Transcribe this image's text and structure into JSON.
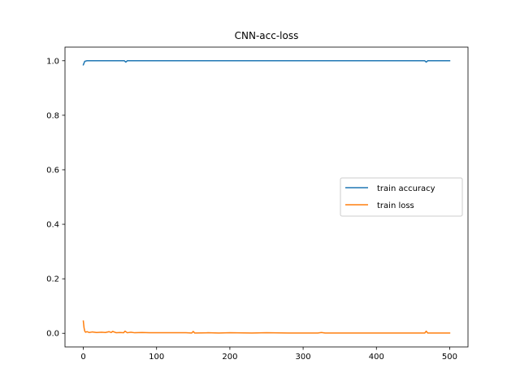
{
  "chart_data": {
    "type": "line",
    "title": "CNN-acc-loss",
    "xlabel": "",
    "ylabel": "",
    "xlim": [
      -25,
      525
    ],
    "ylim": [
      -0.05,
      1.05
    ],
    "xticks": [
      0,
      100,
      200,
      300,
      400,
      500
    ],
    "yticks": [
      0.0,
      0.2,
      0.4,
      0.6,
      0.8,
      1.0
    ],
    "xtick_labels": [
      "0",
      "100",
      "200",
      "300",
      "400",
      "500"
    ],
    "ytick_labels": [
      "0.0",
      "0.2",
      "0.4",
      "0.6",
      "0.8",
      "1.0"
    ],
    "grid": false,
    "legend_position": "center-right",
    "series": [
      {
        "name": "train accuracy",
        "color": "#1f77b4",
        "x": [
          0,
          2,
          5,
          20,
          50,
          56,
          58,
          60,
          100,
          200,
          300,
          400,
          466,
          468,
          470,
          500
        ],
        "y": [
          0.985,
          0.998,
          1.0,
          1.0,
          1.0,
          1.0,
          0.995,
          1.0,
          1.0,
          1.0,
          1.0,
          1.0,
          1.0,
          0.995,
          1.0,
          1.0
        ]
      },
      {
        "name": "train loss",
        "color": "#ff7f0e",
        "x": [
          0,
          1,
          2,
          3,
          5,
          8,
          12,
          18,
          25,
          30,
          35,
          38,
          40,
          45,
          50,
          55,
          57,
          60,
          65,
          70,
          80,
          90,
          100,
          120,
          140,
          148,
          150,
          152,
          170,
          185,
          200,
          230,
          250,
          280,
          300,
          320,
          325,
          330,
          350,
          380,
          400,
          430,
          450,
          466,
          468,
          470,
          490,
          500
        ],
        "y": [
          0.045,
          0.02,
          0.008,
          0.004,
          0.006,
          0.003,
          0.005,
          0.003,
          0.004,
          0.003,
          0.006,
          0.003,
          0.007,
          0.002,
          0.003,
          0.002,
          0.008,
          0.002,
          0.004,
          0.002,
          0.003,
          0.002,
          0.002,
          0.002,
          0.002,
          0.001,
          0.007,
          0.001,
          0.002,
          0.001,
          0.002,
          0.001,
          0.002,
          0.001,
          0.001,
          0.001,
          0.003,
          0.001,
          0.001,
          0.001,
          0.001,
          0.001,
          0.001,
          0.001,
          0.008,
          0.001,
          0.001,
          0.001
        ]
      }
    ]
  }
}
